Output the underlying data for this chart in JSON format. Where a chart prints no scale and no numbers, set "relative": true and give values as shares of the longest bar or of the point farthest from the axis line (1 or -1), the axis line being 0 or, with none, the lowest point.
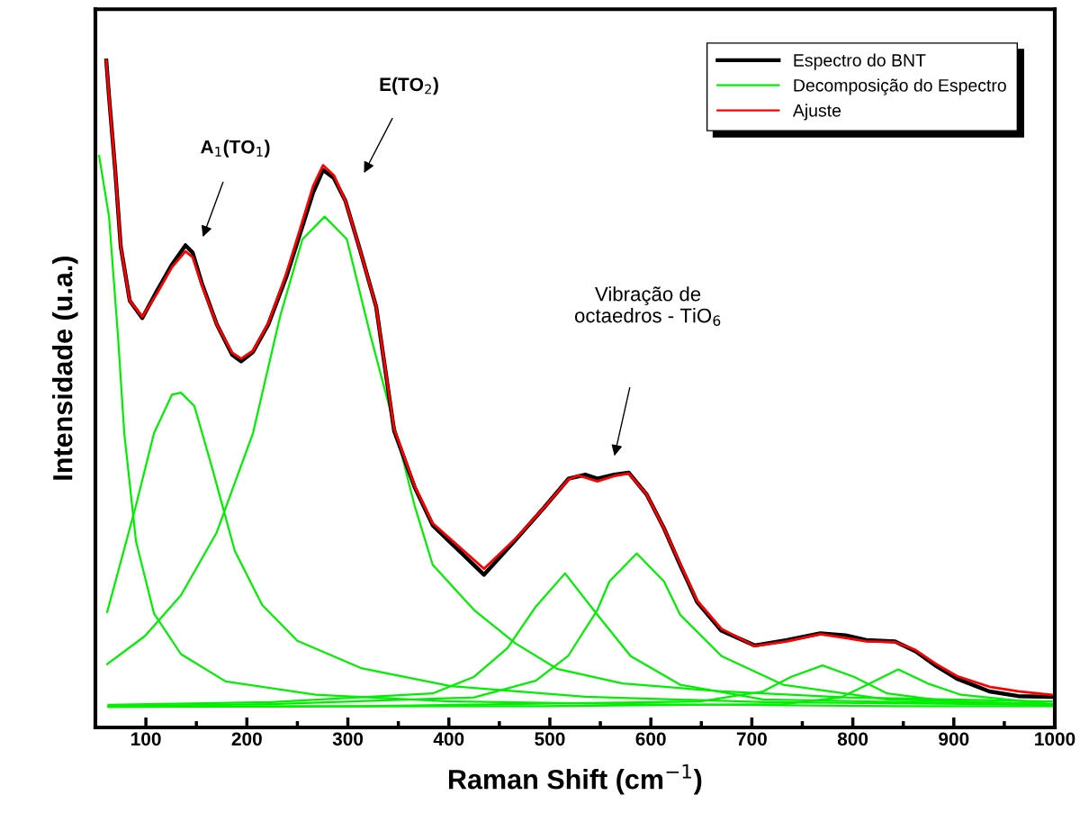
{
  "chart_data": {
    "type": "line",
    "relative": true,
    "xlabel": "Raman Shift (cm$^{−1}$)",
    "ylabel": "Intensidade (u.a.)",
    "xlim": [
      50,
      1000
    ],
    "xticks": [
      100,
      {
        "value": 150,
        "label": null
      },
      200,
      {
        "value": 250,
        "label": null
      },
      300,
      {
        "value": 350,
        "label": null
      },
      400,
      {
        "value": 450,
        "label": null
      },
      500,
      {
        "value": 550,
        "label": null
      },
      600,
      {
        "value": 650,
        "label": null
      },
      700,
      {
        "value": 750,
        "label": null
      },
      800,
      {
        "value": 850,
        "label": null
      },
      900,
      {
        "value": 950,
        "label": null
      },
      1000
    ],
    "grid": false,
    "legend": "top right",
    "marker": "none",
    "line_style": "solid",
    "series": [
      {
        "name": "Espectro do BNT",
        "color": "#000000",
        "x": [
          60.8,
          63.5,
          69.7,
          75.1,
          84.0,
          96.4,
          110.7,
          125.8,
          139.2,
          146.3,
          155.2,
          170.3,
          185.4,
          194.4,
          206.0,
          221.1,
          238.9,
          253.2,
          265.6,
          275.4,
          286.1,
          297.7,
          312.8,
          328.0,
          345.8,
          366.2,
          384.1,
          434.8,
          466.0,
          494.5,
          518.5,
          535.4,
          547.0,
          563.9,
          578.2,
          596.0,
          612.9,
          628.9,
          645.9,
          669.9,
          702.8,
          734.9,
          767.8,
          792.8,
          813.3,
          841.8,
          862.2,
          882.7,
          903.2,
          935.3,
          963.8,
          996.7
        ],
        "values": [
          1.0,
          0.946,
          0.834,
          0.721,
          0.64,
          0.614,
          0.654,
          0.694,
          0.723,
          0.712,
          0.667,
          0.604,
          0.559,
          0.549,
          0.563,
          0.604,
          0.675,
          0.743,
          0.802,
          0.836,
          0.824,
          0.789,
          0.712,
          0.631,
          0.445,
          0.36,
          0.303,
          0.229,
          0.281,
          0.33,
          0.373,
          0.379,
          0.373,
          0.379,
          0.382,
          0.349,
          0.299,
          0.244,
          0.188,
          0.145,
          0.123,
          0.131,
          0.141,
          0.138,
          0.131,
          0.129,
          0.114,
          0.092,
          0.073,
          0.054,
          0.047,
          0.046
        ]
      },
      {
        "name": "Decomposição do Espectro",
        "color": "#00ee00",
        "x": [
          53.7,
          63.5,
          72.4,
          78.6,
          90.2,
          108,
          134.7,
          179,
          268,
          402,
          580,
          847,
          1000
        ],
        "values": [
          0.857,
          0.766,
          0.586,
          0.441,
          0.279,
          0.171,
          0.11,
          0.069,
          0.049,
          0.039,
          0.035,
          0.032,
          0.032
        ]
      },
      {
        "color": "#00ee00",
        "x": [
          61.7,
          90.2,
          108,
          125.8,
          134.7,
          148,
          166,
          188,
          215,
          250,
          313,
          402,
          535,
          713,
          1000
        ],
        "values": [
          0.173,
          0.333,
          0.441,
          0.499,
          0.502,
          0.482,
          0.387,
          0.265,
          0.184,
          0.13,
          0.089,
          0.062,
          0.046,
          0.038,
          0.034
        ]
      },
      {
        "color": "#00ee00",
        "x": [
          61.7,
          99,
          134.7,
          170,
          206,
          233,
          255,
          277,
          299,
          322,
          348,
          366,
          384,
          425,
          466,
          507,
          572,
          670,
          793,
          997
        ],
        "values": [
          0.095,
          0.137,
          0.198,
          0.292,
          0.441,
          0.617,
          0.732,
          0.766,
          0.732,
          0.59,
          0.441,
          0.333,
          0.244,
          0.176,
          0.126,
          0.088,
          0.066,
          0.054,
          0.045,
          0.039
        ]
      },
      {
        "color": "#00ee00",
        "x": [
          63,
          224,
          384,
          425,
          458,
          486,
          515,
          547,
          580,
          629,
          711,
          997
        ],
        "values": [
          0.034,
          0.038,
          0.051,
          0.076,
          0.119,
          0.181,
          0.231,
          0.169,
          0.107,
          0.064,
          0.042,
          0.034
        ]
      },
      {
        "color": "#00ee00",
        "x": [
          63,
          224,
          425,
          486,
          518,
          547,
          559,
          586,
          613,
          629,
          670,
          731,
          834,
          997
        ],
        "values": [
          0.032,
          0.035,
          0.045,
          0.07,
          0.107,
          0.176,
          0.219,
          0.261,
          0.219,
          0.169,
          0.107,
          0.064,
          0.042,
          0.035
        ]
      },
      {
        "color": "#00ee00",
        "x": [
          63,
          313,
          649,
          711,
          739,
          770,
          801,
          834,
          894,
          997
        ],
        "values": [
          0.031,
          0.032,
          0.039,
          0.054,
          0.076,
          0.093,
          0.076,
          0.051,
          0.039,
          0.034
        ]
      },
      {
        "color": "#00ee00",
        "x": [
          63,
          491,
          731,
          788,
          817,
          845,
          874,
          907,
          997
        ],
        "values": [
          0.031,
          0.032,
          0.035,
          0.045,
          0.066,
          0.087,
          0.066,
          0.049,
          0.035
        ]
      },
      {
        "name": "Ajuste",
        "color": "#ff0000",
        "x": [
          60.8,
          63.5,
          69.7,
          75.1,
          84.0,
          96.4,
          110.7,
          125.8,
          139.2,
          146.3,
          155.2,
          170.3,
          185.4,
          194.4,
          206.0,
          221.1,
          238.9,
          253.2,
          265.6,
          275.4,
          286.1,
          297.7,
          312.8,
          328.0,
          345.8,
          366.2,
          384.1,
          434.8,
          466.0,
          494.5,
          518.5,
          528.0,
          547.0,
          563.9,
          578.2,
          596.0,
          612.9,
          628.9,
          645.9,
          669.9,
          702.8,
          734.9,
          767.8,
          792.8,
          813.3,
          841.8,
          862.2,
          882.7,
          903.2,
          935.3,
          963.8,
          996.7
        ],
        "values": [
          1.0,
          0.946,
          0.834,
          0.721,
          0.64,
          0.616,
          0.65,
          0.69,
          0.714,
          0.705,
          0.664,
          0.604,
          0.562,
          0.553,
          0.565,
          0.606,
          0.68,
          0.75,
          0.812,
          0.843,
          0.828,
          0.789,
          0.712,
          0.631,
          0.448,
          0.362,
          0.306,
          0.238,
          0.283,
          0.33,
          0.372,
          0.378,
          0.369,
          0.377,
          0.381,
          0.349,
          0.299,
          0.246,
          0.19,
          0.148,
          0.122,
          0.129,
          0.14,
          0.134,
          0.129,
          0.128,
          0.116,
          0.095,
          0.077,
          0.061,
          0.054,
          0.049
        ]
      }
    ],
    "annotations": [
      "A$_{1}$(TO$_{1}$)",
      "E(TO$_{2}$)",
      "Vibração de\noctaedros - TiO$_{6}$"
    ]
  }
}
